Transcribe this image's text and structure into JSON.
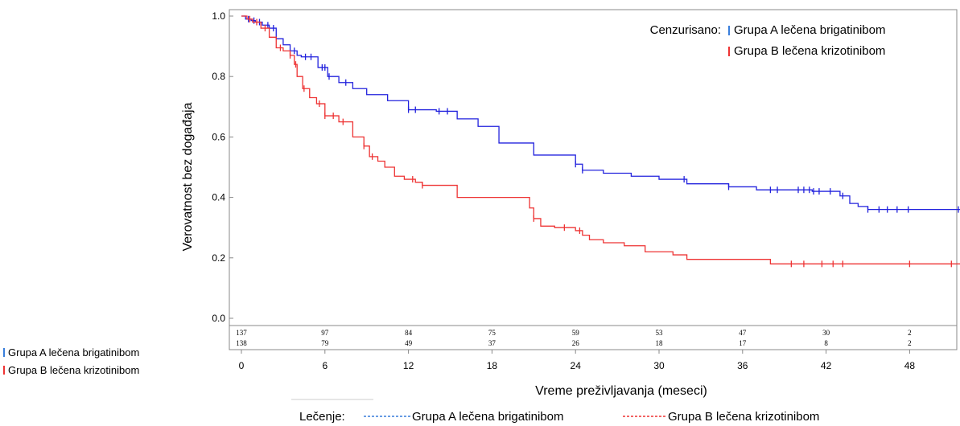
{
  "chart_data": {
    "type": "line",
    "ylabel": "Verovatnost bez događaja",
    "xlabel": "Vreme preživljavanja (meseci)",
    "xlim": [
      0,
      54
    ],
    "ylim": [
      0.0,
      1.0
    ],
    "x_ticks": [
      "0",
      "6",
      "12",
      "18",
      "24",
      "30",
      "36",
      "42",
      "48"
    ],
    "y_ticks": [
      "0.0",
      "0.2",
      "0.4",
      "0.6",
      "0.8",
      "1.0"
    ],
    "grid": false,
    "legend_top": {
      "title": "Cenzurisano:",
      "entries": [
        "Grupa A lečena brigatinibom",
        "Grupa B lečena krizotinibom"
      ]
    },
    "legend_bottom": {
      "title": "Lečenje:",
      "entries": [
        "Grupa A lečena brigatinibom",
        "Grupa B lečena krizotinibom"
      ]
    },
    "risk_table": {
      "groups": [
        "Grupa A lečena brigatinibom",
        "Grupa B lečena krizotinibom"
      ],
      "x": [
        0,
        6,
        12,
        18,
        24,
        30,
        36,
        42,
        48
      ],
      "counts": [
        [
          137,
          97,
          84,
          75,
          59,
          53,
          47,
          30,
          2
        ],
        [
          138,
          79,
          49,
          37,
          26,
          18,
          17,
          8,
          2
        ]
      ]
    },
    "series": [
      {
        "name": "Grupa A lečena brigatinibom",
        "color": "#2222dd",
        "x": [
          0,
          0.3,
          0.7,
          1.0,
          1.5,
          2.0,
          2.5,
          3.0,
          3.5,
          4.0,
          4.3,
          5.5,
          6.2,
          7.0,
          8.0,
          9.0,
          10.5,
          12.0,
          14.0,
          15.5,
          17.0,
          18.5,
          20.0,
          21.0,
          23.5,
          24.0,
          24.5,
          26.0,
          28.0,
          30.0,
          32.0,
          35.0,
          37.0,
          41.0,
          43.0,
          43.7,
          44.3,
          45.0,
          54.0
        ],
        "y": [
          1.0,
          0.99,
          0.985,
          0.98,
          0.97,
          0.96,
          0.925,
          0.905,
          0.885,
          0.87,
          0.865,
          0.83,
          0.8,
          0.78,
          0.76,
          0.74,
          0.72,
          0.69,
          0.685,
          0.66,
          0.635,
          0.58,
          0.58,
          0.54,
          0.54,
          0.51,
          0.49,
          0.48,
          0.47,
          0.46,
          0.445,
          0.435,
          0.425,
          0.42,
          0.405,
          0.38,
          0.37,
          0.36,
          0.36
        ],
        "censor_x": [
          0.5,
          0.9,
          1.3,
          1.9,
          2.3,
          3.8,
          4.6,
          5.0,
          5.8,
          6.0,
          6.3,
          7.5,
          12.0,
          12.5,
          14.2,
          14.8,
          24.0,
          24.5,
          31.8,
          35.0,
          38.0,
          38.5,
          40.0,
          40.4,
          40.8,
          41.1,
          41.5,
          42.3,
          43.2,
          45.0,
          45.8,
          46.4,
          47.1,
          47.9,
          51.5,
          53.8
        ]
      },
      {
        "name": "Grupa B lečena krizotinibom",
        "color": "#ee3333",
        "x": [
          0,
          0.4,
          0.8,
          1.4,
          2.0,
          2.5,
          3.0,
          3.5,
          3.8,
          4.0,
          4.4,
          4.9,
          5.4,
          6.0,
          7.0,
          8.0,
          8.8,
          9.2,
          9.8,
          10.3,
          11.0,
          11.7,
          12.5,
          13.0,
          15.5,
          20.7,
          21.0,
          21.5,
          22.5,
          24.0,
          24.5,
          25.0,
          26.0,
          27.5,
          29.0,
          31.0,
          32.0,
          38.0,
          54.0
        ],
        "y": [
          1.0,
          0.99,
          0.98,
          0.96,
          0.93,
          0.895,
          0.885,
          0.87,
          0.84,
          0.8,
          0.76,
          0.73,
          0.71,
          0.67,
          0.65,
          0.6,
          0.57,
          0.535,
          0.52,
          0.5,
          0.47,
          0.46,
          0.45,
          0.44,
          0.4,
          0.365,
          0.33,
          0.305,
          0.3,
          0.29,
          0.275,
          0.26,
          0.25,
          0.24,
          0.22,
          0.21,
          0.195,
          0.18,
          0.18
        ]
      }
    ]
  },
  "censor_red_x": [
    0.6,
    1.1,
    1.7,
    2.8,
    3.5,
    3.9,
    4.5,
    5.6,
    6.0,
    6.6,
    7.3,
    8.8,
    9.4,
    12.3,
    13.0,
    21.0,
    23.2,
    24.3,
    39.5,
    40.4,
    41.7,
    42.5,
    43.2,
    48.0,
    51.0,
    54.0
  ]
}
